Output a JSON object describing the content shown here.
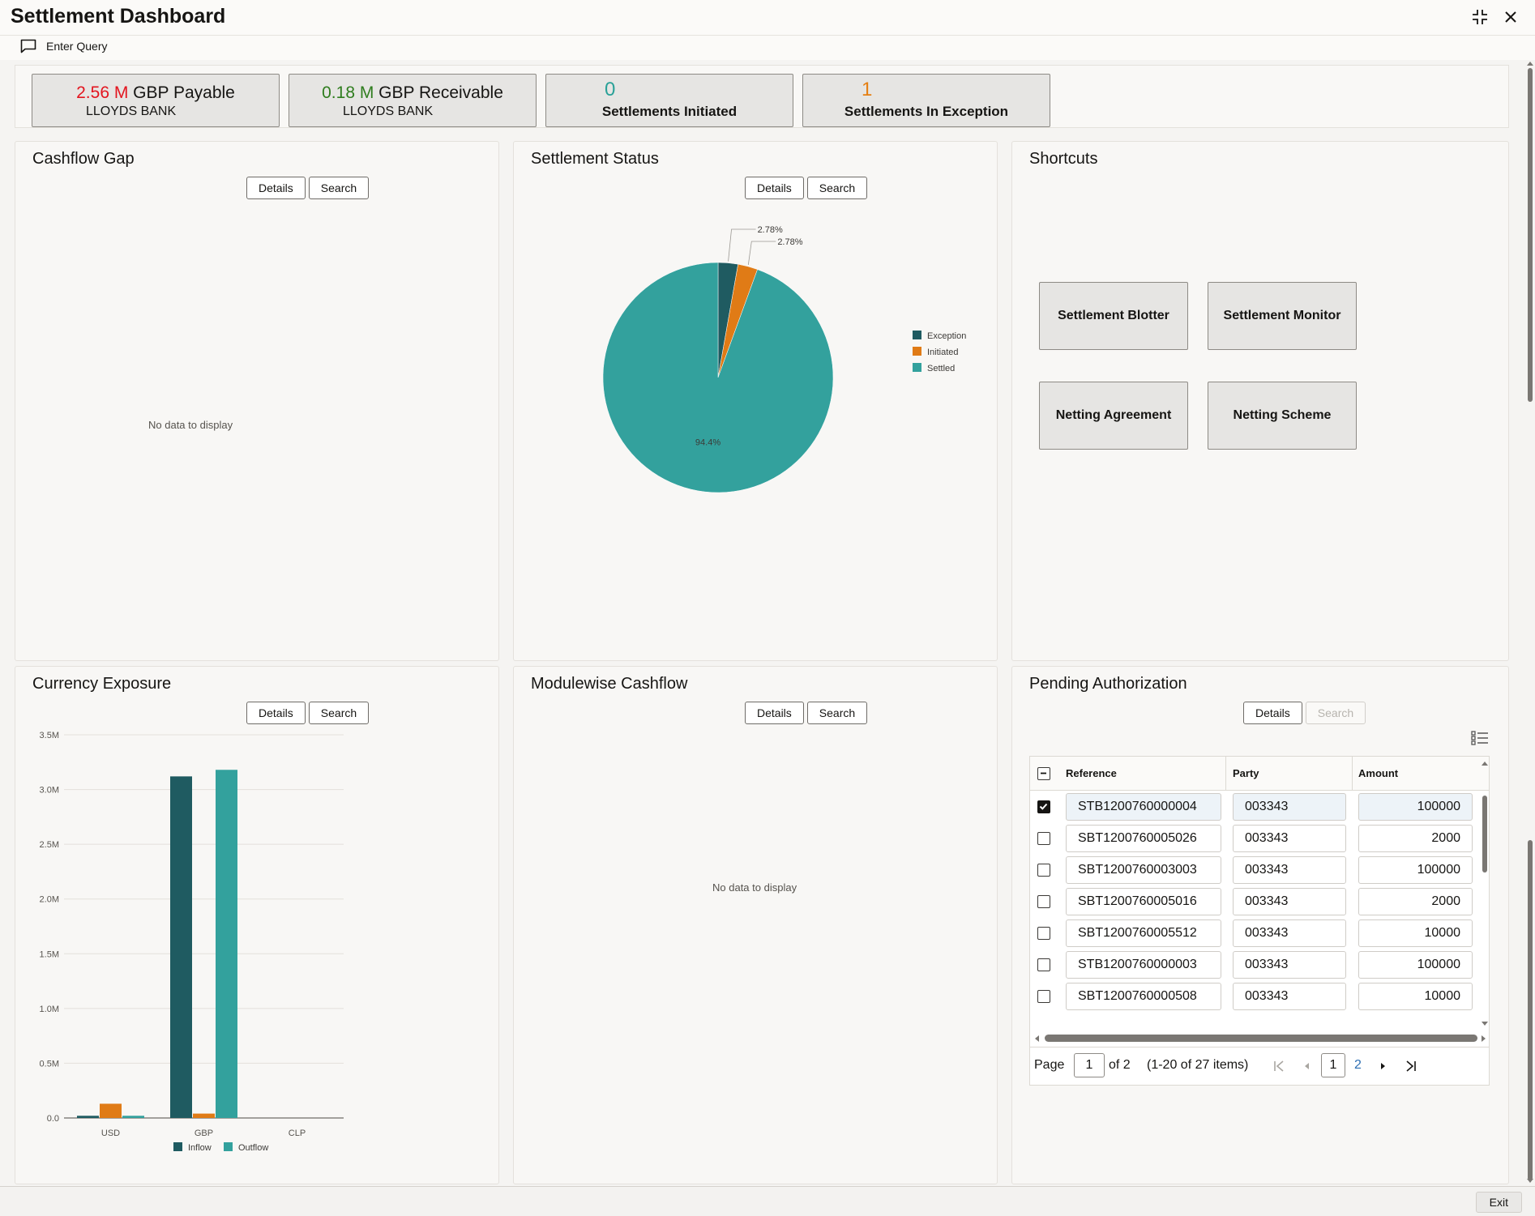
{
  "app": {
    "title": "Settlement Dashboard",
    "enter_query": "Enter Query",
    "exit": "Exit"
  },
  "tiles": {
    "payable": {
      "amount": "2.56 M",
      "label": "GBP Payable",
      "bank": "LLOYDS BANK",
      "color": "#e3141e"
    },
    "receivable": {
      "amount": "0.18 M",
      "label": "GBP Receivable",
      "bank": "LLOYDS BANK",
      "color": "#2f7d1e"
    },
    "initiated": {
      "count": "0",
      "label": "Settlements Initiated",
      "color": "#2aa198"
    },
    "exception": {
      "count": "1",
      "label": "Settlements In Exception",
      "color": "#e57f12"
    }
  },
  "buttons": {
    "details": "Details",
    "search": "Search"
  },
  "panels": {
    "cashflow_gap": {
      "title": "Cashflow Gap",
      "empty": "No data to display"
    },
    "settlement_status": {
      "title": "Settlement Status"
    },
    "shortcuts": {
      "title": "Shortcuts",
      "items": [
        "Settlement Blotter",
        "Settlement Monitor",
        "Netting Agreement",
        "Netting Scheme"
      ]
    },
    "currency_exposure": {
      "title": "Currency Exposure"
    },
    "modulewise_cashflow": {
      "title": "Modulewise Cashflow",
      "empty": "No data to display"
    },
    "pending_authorization": {
      "title": "Pending Authorization",
      "columns": [
        "Reference",
        "Party",
        "Amount"
      ],
      "rows": [
        {
          "reference": "STB1200760000004",
          "party": "003343",
          "amount": "100000",
          "checked": true
        },
        {
          "reference": "SBT1200760005026",
          "party": "003343",
          "amount": "2000",
          "checked": false
        },
        {
          "reference": "SBT1200760003003",
          "party": "003343",
          "amount": "100000",
          "checked": false
        },
        {
          "reference": "SBT1200760005016",
          "party": "003343",
          "amount": "2000",
          "checked": false
        },
        {
          "reference": "SBT1200760005512",
          "party": "003343",
          "amount": "10000",
          "checked": false
        },
        {
          "reference": "STB1200760000003",
          "party": "003343",
          "amount": "100000",
          "checked": false
        },
        {
          "reference": "SBT1200760000508",
          "party": "003343",
          "amount": "10000",
          "checked": false
        }
      ],
      "pager": {
        "page_label": "Page",
        "current_page": "1",
        "of_label": "of 2",
        "range_label": "(1-20 of 27 items)",
        "pages": [
          "1",
          "2"
        ]
      }
    }
  },
  "chart_data": [
    {
      "type": "pie",
      "categories": [
        "Exception",
        "Initiated",
        "Settled"
      ],
      "values": [
        2.78,
        2.78,
        94.4
      ],
      "labels": [
        "2.78%",
        "2.78%",
        "94.4%"
      ],
      "colors": [
        "#1f5b61",
        "#e07b16",
        "#33a19d"
      ],
      "legend": "right"
    },
    {
      "type": "bar",
      "categories": [
        "USD",
        "GBP",
        "CLP"
      ],
      "series": [
        {
          "name": "Inflow",
          "values": [
            0.02,
            3.12,
            0
          ],
          "color": "#1f5b61"
        },
        {
          "name": "",
          "values": [
            0.13,
            0.04,
            0
          ],
          "color": "#e07b16"
        },
        {
          "name": "Outflow",
          "values": [
            0.02,
            3.18,
            0
          ],
          "color": "#33a19d"
        }
      ],
      "yticks": [
        "0.0",
        "0.5M",
        "1.0M",
        "1.5M",
        "2.0M",
        "2.5M",
        "3.0M",
        "3.5M"
      ],
      "ylim": [
        0,
        3.5
      ],
      "grid": true,
      "legend": "bottom"
    }
  ]
}
